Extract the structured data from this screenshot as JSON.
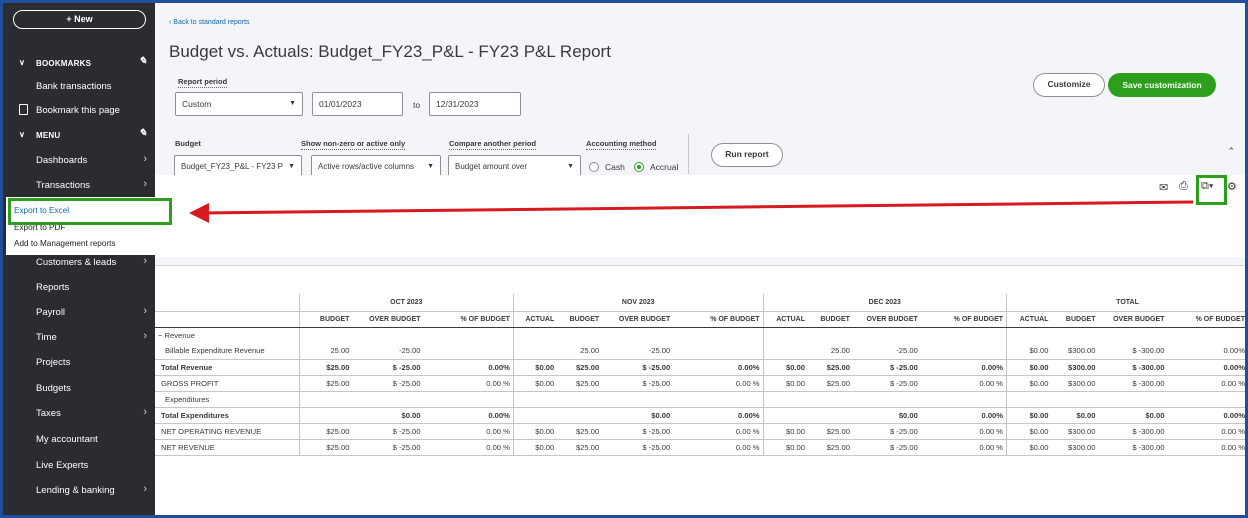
{
  "sidebar": {
    "new_label": "+ New",
    "bookmarks_label": "BOOKMARKS",
    "bank_transactions": "Bank transactions",
    "bookmark_page": "Bookmark this page",
    "menu_label": "MENU",
    "items": [
      {
        "label": "Dashboards",
        "arrow": true
      },
      {
        "label": "Transactions",
        "arrow": true
      },
      {
        "label": "Customers & leads",
        "arrow": true
      },
      {
        "label": "Reports",
        "arrow": false
      },
      {
        "label": "Payroll",
        "arrow": true
      },
      {
        "label": "Time",
        "arrow": true
      },
      {
        "label": "Projects",
        "arrow": false
      },
      {
        "label": "Budgets",
        "arrow": false
      },
      {
        "label": "Taxes",
        "arrow": true
      },
      {
        "label": "My accountant",
        "arrow": false
      },
      {
        "label": "Live Experts",
        "arrow": false
      },
      {
        "label": "Lending & banking",
        "arrow": true
      }
    ]
  },
  "export_menu": {
    "items": [
      "Export to Excel",
      "Export to PDF",
      "Add to Management reports"
    ]
  },
  "header": {
    "back_link": "Back to standard reports",
    "title": "Budget vs. Actuals: Budget_FY23_P&L - FY23 P&L Report"
  },
  "filters": {
    "report_period_label": "Report period",
    "period_value": "Custom",
    "date_from": "01/01/2023",
    "to_label": "to",
    "date_to": "12/31/2023",
    "budget_label": "Budget",
    "budget_value": "Budget_FY23_P&L - FY23 P",
    "show_label": "Show non-zero or active only",
    "show_value": "Active rows/active columns",
    "compare_label": "Compare another period",
    "compare_value": "Budget amount over",
    "accounting_label": "Accounting method",
    "cash_label": "Cash",
    "accrual_label": "Accrual",
    "run_report": "Run report",
    "customize": "Customize",
    "save_customization": "Save customization"
  },
  "colors": {
    "sidebar_bg": "#2b2c2f",
    "accent_green": "#2ca01c",
    "link_blue": "#0d6aaa",
    "arrow_red": "#d71920"
  },
  "report": {
    "groups": [
      "OCT 2023",
      "NOV 2023",
      "DEC 2023",
      "TOTAL"
    ],
    "oct_columns": [
      "BUDGET",
      "OVER BUDGET",
      "% OF BUDGET"
    ],
    "other_columns": [
      "ACTUAL",
      "BUDGET",
      "OVER BUDGET",
      "% OF BUDGET"
    ],
    "rows": [
      {
        "label": "Revenue",
        "cls": "hdr",
        "cells": [
          "",
          "",
          "",
          "",
          "",
          "",
          "",
          "",
          "",
          "",
          "",
          "",
          "",
          "",
          ""
        ]
      },
      {
        "label": "Billable Expenditure Revenue",
        "cls": "ind",
        "cells": [
          "25.00",
          "-25.00",
          "",
          "",
          "25.00",
          "-25.00",
          "",
          "",
          "25.00",
          "-25.00",
          "",
          "$0.00",
          "$300.00",
          "$ -300.00",
          "0.00%"
        ]
      },
      {
        "label": "Total Revenue",
        "cls": "tot",
        "cells": [
          "$25.00",
          "$ -25.00",
          "0.00%",
          "$0.00",
          "$25.00",
          "$ -25.00",
          "0.00%",
          "$0.00",
          "$25.00",
          "$ -25.00",
          "0.00%",
          "$0.00",
          "$300.00",
          "$ -300.00",
          "0.00%"
        ]
      },
      {
        "label": "GROSS PROFIT",
        "cls": "line",
        "cells": [
          "$25.00",
          "$ -25.00",
          "0.00 %",
          "$0.00",
          "$25.00",
          "$ -25.00",
          "0.00 %",
          "$0.00",
          "$25.00",
          "$ -25.00",
          "0.00 %",
          "$0.00",
          "$300.00",
          "$ -300.00",
          "0.00 %"
        ]
      },
      {
        "label": "Expenditures",
        "cls": "ind",
        "cells": [
          "",
          "",
          "",
          "",
          "",
          "",
          "",
          "",
          "",
          "",
          "",
          "",
          "",
          "",
          ""
        ]
      },
      {
        "label": "Total Expenditures",
        "cls": "tot",
        "cells": [
          "",
          "$0.00",
          "0.00%",
          "",
          "",
          "$0.00",
          "0.00%",
          "",
          "",
          "$0.00",
          "0.00%",
          "$0.00",
          "$0.00",
          "$0.00",
          "0.00%"
        ]
      },
      {
        "label": "NET OPERATING REVENUE",
        "cls": "line",
        "cells": [
          "$25.00",
          "$ -25.00",
          "0.00 %",
          "$0.00",
          "$25.00",
          "$ -25.00",
          "0.00 %",
          "$0.00",
          "$25.00",
          "$ -25.00",
          "0.00 %",
          "$0.00",
          "$300.00",
          "$ -300.00",
          "0.00 %"
        ]
      },
      {
        "label": "NET REVENUE",
        "cls": "line",
        "cells": [
          "$25.00",
          "$ -25.00",
          "0.00 %",
          "$0.00",
          "$25.00",
          "$ -25.00",
          "0.00 %",
          "$0.00",
          "$25.00",
          "$ -25.00",
          "0.00 %",
          "$0.00",
          "$300.00",
          "$ -300.00",
          "0.00 %"
        ]
      }
    ]
  },
  "toolbar_icons": [
    "email-icon",
    "print-icon",
    "export-icon",
    "settings-gear-icon"
  ]
}
